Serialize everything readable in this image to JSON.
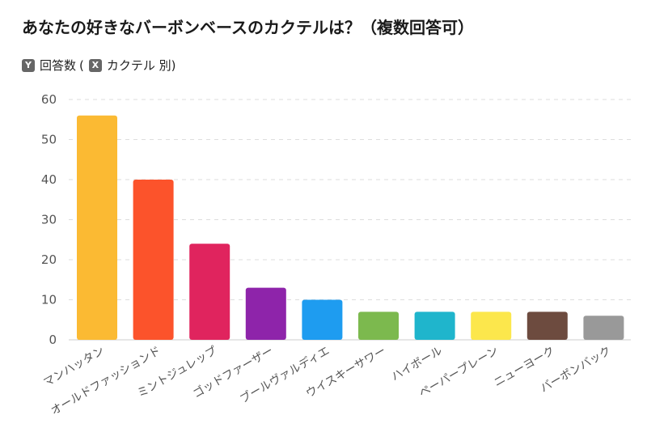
{
  "title": "あなたの好きなバーボンベースのカクテルは？（複数回答可）",
  "legend": {
    "y_badge": "Y",
    "y_label": "回答数",
    "open_paren": "(",
    "x_badge": "X",
    "x_label": "カクテル 別)"
  },
  "chart_data": {
    "type": "bar",
    "title": "あなたの好きなバーボンベースのカクテルは？（複数回答可）",
    "categories": [
      "マンハッタン",
      "オールドファッションド",
      "ミントジュレップ",
      "ゴッドファーザー",
      "ブールヴァルディエ",
      "ウイスキーサワー",
      "ハイボール",
      "ペーパープレーン",
      "ニューヨーク",
      "バーボンバック"
    ],
    "values": [
      56,
      40,
      24,
      13,
      10,
      7,
      7,
      7,
      7,
      6
    ],
    "colors": [
      "#FBBA33",
      "#FC532B",
      "#E0245E",
      "#8E24AA",
      "#1E9CF0",
      "#7CB94E",
      "#1FB5CC",
      "#FCE74C",
      "#6D4B3F",
      "#999999"
    ],
    "yticks": [
      0,
      10,
      20,
      30,
      40,
      50,
      60
    ],
    "ylim": [
      0,
      60
    ],
    "grid": true,
    "xlabel": "",
    "ylabel": ""
  }
}
